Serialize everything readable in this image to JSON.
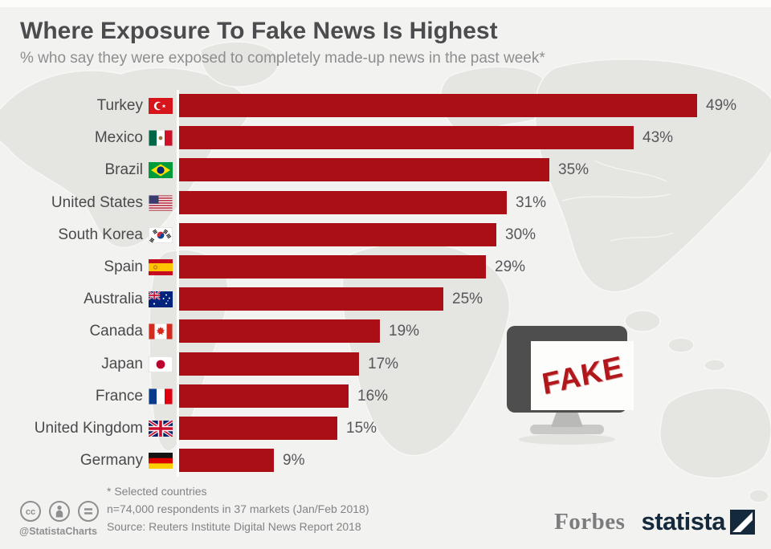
{
  "header": {
    "title": "Where Exposure To Fake News Is Highest",
    "subtitle": "% who say they were exposed to completely made-up news in the past week*"
  },
  "chart_data": {
    "type": "bar",
    "orientation": "horizontal",
    "value_unit": "%",
    "xlim": [
      0,
      52
    ],
    "grid": false,
    "legend": "none",
    "categories": [
      "Turkey",
      "Mexico",
      "Brazil",
      "United States",
      "South Korea",
      "Spain",
      "Australia",
      "Canada",
      "Japan",
      "France",
      "United Kingdom",
      "Germany"
    ],
    "values": [
      49,
      43,
      35,
      31,
      30,
      29,
      25,
      19,
      17,
      16,
      15,
      9
    ],
    "value_labels": [
      "49%",
      "43%",
      "35%",
      "31%",
      "30%",
      "29%",
      "25%",
      "19%",
      "17%",
      "16%",
      "15%",
      "9%"
    ],
    "flags": [
      "turkey",
      "mexico",
      "brazil",
      "united-states",
      "south-korea",
      "spain",
      "australia",
      "canada",
      "japan",
      "france",
      "united-kingdom",
      "germany"
    ]
  },
  "illustration": {
    "fake_label": "FAKE",
    "description_icon": "monitor-icon"
  },
  "footnotes": {
    "line1": "* Selected countries",
    "line2": "n=74,000 respondents in 37 markets (Jan/Feb 2018)",
    "line3": "Source: Reuters Institute Digital News Report 2018"
  },
  "branding": {
    "credit_handle": "@StatistaCharts",
    "publisher": "Forbes",
    "brand": "statista",
    "license_icons": [
      "cc-icon",
      "attribution-icon",
      "equals-icon"
    ]
  },
  "colors": {
    "bar": "#a90f14",
    "background": "#f2f2f0",
    "map_fill": "#e5e5e2",
    "map_border": "#f7f7f5",
    "title_text": "#4c4c4e",
    "subtitle_text": "#8e8e90",
    "value_text": "#57575b",
    "brand_navy": "#15293c",
    "forbes_gray": "#7c7c7e",
    "fake_red": "#b1181c",
    "monitor_frame": "#4e4e4e"
  }
}
